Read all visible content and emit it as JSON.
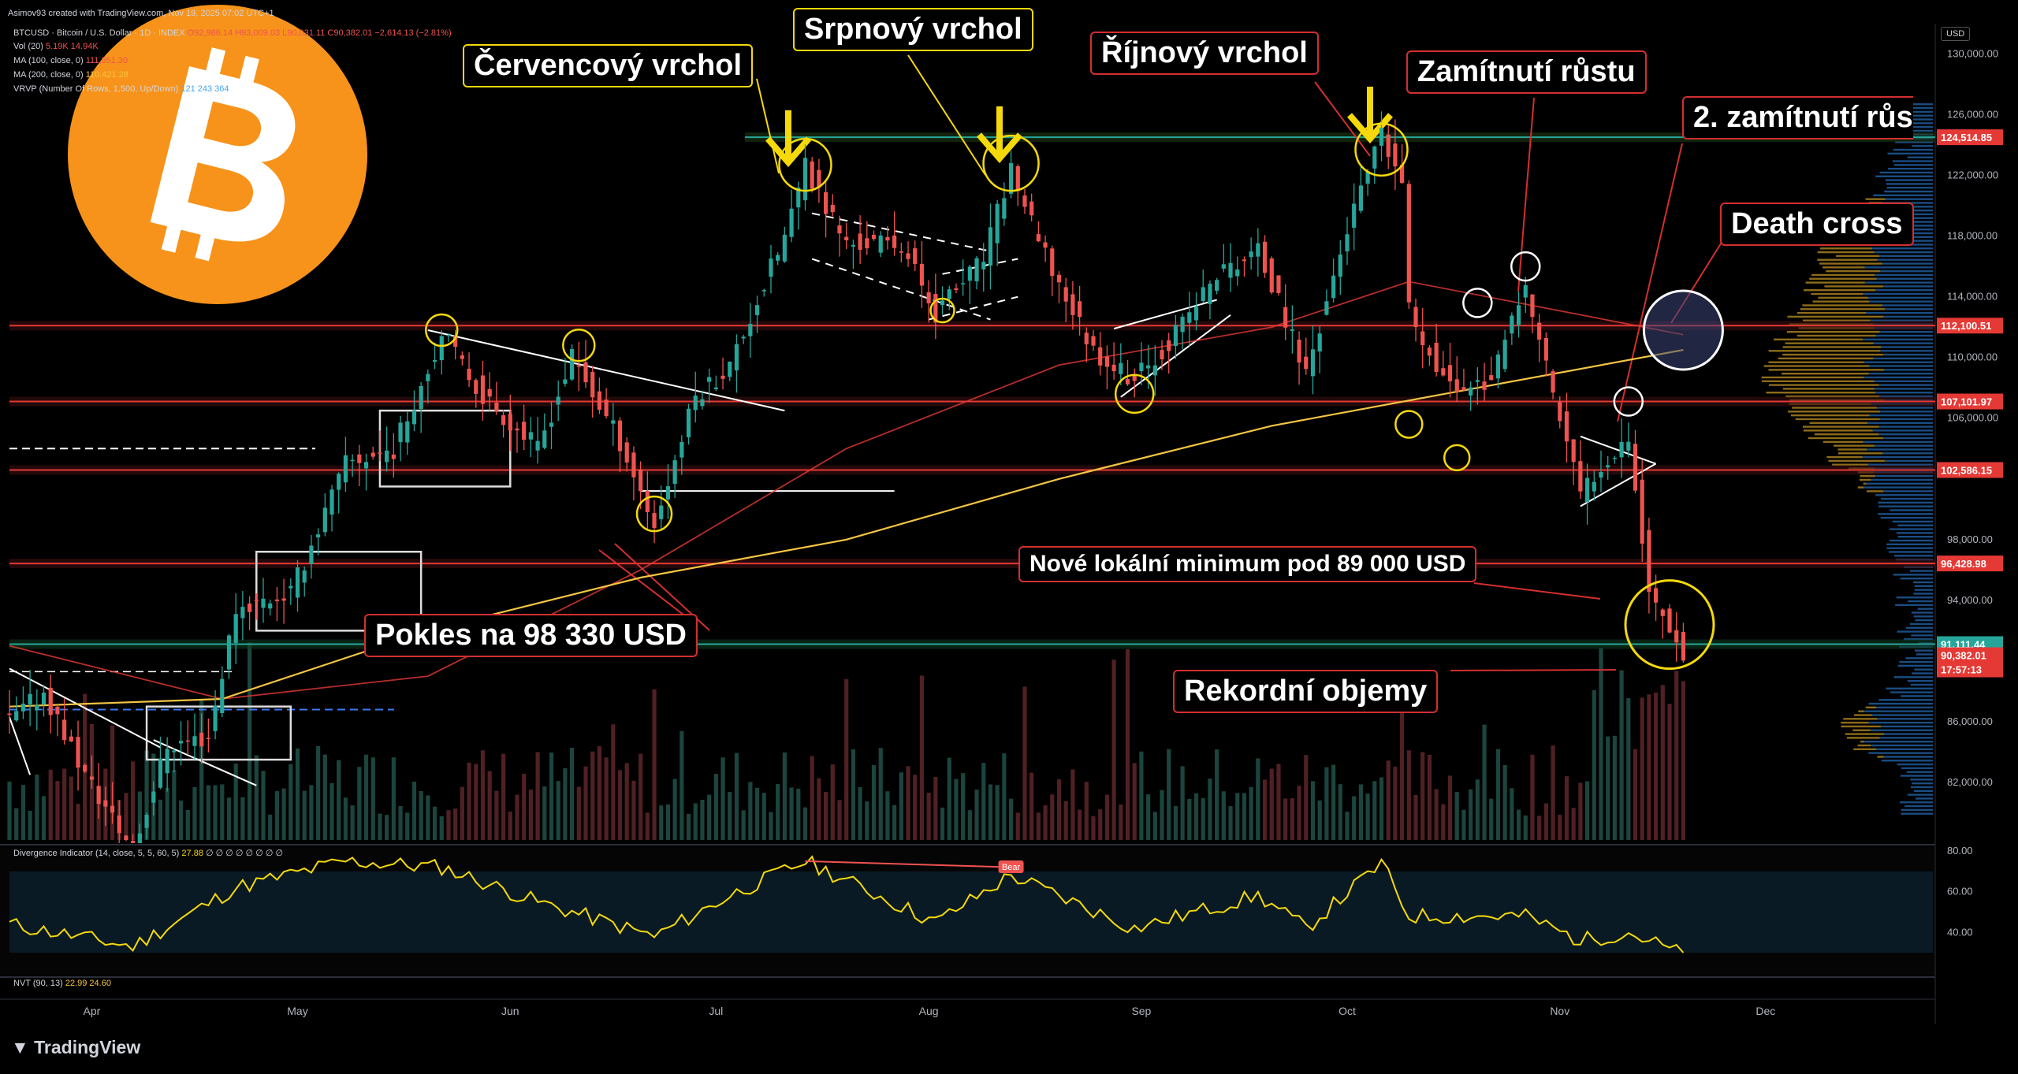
{
  "header": {
    "credit": "Asimov93 created with TradingView.com, Nov 19, 2025 07:02 UTC+1",
    "symbol": "BTCUSD · Bitcoin / U.S. Dollar · 1D · INDEX",
    "ohlc": "O92,986.14  H93,009.03  L90,031.11  C90,382.01  −2,614.13 (−2.81%)",
    "vol": "Vol (20)",
    "vol_vals": "5.19K  14.94K",
    "ma100": "MA (100, close, 0)",
    "ma100_val": "111,351.30",
    "ma200": "MA (200, close, 0)",
    "ma200_val": "110,421.28",
    "vrvp": "VRVP (Number Of Rows, 1,500, Up/Down)",
    "vrvp_vals": "121  243  364",
    "currency": "USD",
    "brand": "TradingView"
  },
  "indicators": {
    "divergence": "Divergence Indicator (14, close, 5, 5, 60, 5)",
    "divergence_val": "27.88",
    "divergence_flags": "∅ ∅ ∅ ∅ ∅ ∅ ∅ ∅",
    "bear_label": "Bear",
    "nvt": "NVT (90, 13)",
    "nvt_vals": "22.99  24.60"
  },
  "annotations": {
    "july_top": "Červencový vrchol",
    "aug_top": "Srpnový vrchol",
    "oct_top": "Říjnový vrchol",
    "rejection": "Zamítnutí růstu",
    "rejection2": "2. zamítnutí růs",
    "death_cross": "Death cross",
    "new_low": "Nové lokální minimum pod 89 000 USD",
    "drop": "Pokles na 98 330 USD",
    "record_vol": "Rekordní objemy"
  },
  "colors": {
    "up": "#26a69a",
    "down": "#ef5350",
    "ma100": "#f5c542",
    "ma200": "#e53935",
    "osc": "#f5d90a",
    "bitcoin": "#f7931a",
    "callout_red": "#d32f2f",
    "callout_yellow": "#f5d90a"
  },
  "chart_data": {
    "type": "candlestick",
    "x_ticks": [
      "Apr",
      "May",
      "Jun",
      "Jul",
      "Aug",
      "Sep",
      "Oct",
      "Nov",
      "Dec"
    ],
    "y_ticks": [
      "130,000.00",
      "126,000.00",
      "122,000.00",
      "118,000.00",
      "114,000.00",
      "110,000.00",
      "106,000.00",
      "98,000.00",
      "94,000.00",
      "86,000.00",
      "82,000.00"
    ],
    "ylim": [
      78000,
      132000
    ],
    "price_tags": [
      {
        "label": "124,514.85",
        "color": "#e53935"
      },
      {
        "label": "112,100.51",
        "color": "#e53935"
      },
      {
        "label": "107,101.97",
        "color": "#e53935"
      },
      {
        "label": "102,586.15",
        "color": "#e53935"
      },
      {
        "label": "96,428.98",
        "color": "#e53935"
      },
      {
        "label": "91,111.44",
        "color": "#26a69a"
      },
      {
        "label": "90,382.01",
        "color": "#e53935"
      },
      {
        "label": "17:57:13",
        "color": "#e53935"
      }
    ],
    "osc_ticks": [
      "80.00",
      "60.00",
      "40.00"
    ],
    "osc_ylim": [
      25,
      80
    ],
    "levels": [
      124514.85,
      112100.51,
      107101.97,
      102586.15,
      96428.98,
      91111.44
    ],
    "price_path": [
      [
        "Mar 20",
        86000
      ],
      [
        "Mar 25",
        88000
      ],
      [
        "Mar 31",
        82500
      ],
      [
        "Apr 7",
        77500
      ],
      [
        "Apr 12",
        84500
      ],
      [
        "Apr 18",
        85000
      ],
      [
        "Apr 22",
        93500
      ],
      [
        "Apr 30",
        94500
      ],
      [
        "May 8",
        103000
      ],
      [
        "May 15",
        104000
      ],
      [
        "May 22",
        111500
      ],
      [
        "May 28",
        107500
      ],
      [
        "Jun 5",
        104000
      ],
      [
        "Jun 10",
        110000
      ],
      [
        "Jun 17",
        104500
      ],
      [
        "Jun 22",
        99000
      ],
      [
        "Jun 28",
        107500
      ],
      [
        "Jul 3",
        109500
      ],
      [
        "Jul 11",
        118000
      ],
      [
        "Jul 14",
        122500
      ],
      [
        "Jul 20",
        117500
      ],
      [
        "Jul 28",
        117500
      ],
      [
        "Aug 2",
        113000
      ],
      [
        "Aug 9",
        116500
      ],
      [
        "Aug 13",
        122500
      ],
      [
        "Aug 17",
        117500
      ],
      [
        "Aug 25",
        110500
      ],
      [
        "Aug 31",
        108500
      ],
      [
        "Sep 5",
        111000
      ],
      [
        "Sep 12",
        115500
      ],
      [
        "Sep 18",
        117000
      ],
      [
        "Sep 25",
        109000
      ],
      [
        "Oct 1",
        118500
      ],
      [
        "Oct 6",
        124500
      ],
      [
        "Oct 9",
        121500
      ],
      [
        "Oct 10",
        113000
      ],
      [
        "Oct 16",
        108000
      ],
      [
        "Oct 22",
        108500
      ],
      [
        "Oct 27",
        114500
      ],
      [
        "Nov 4",
        101000
      ],
      [
        "Nov 7",
        103000
      ],
      [
        "Nov 11",
        105000
      ],
      [
        "Nov 14",
        94500
      ],
      [
        "Nov 17",
        92500
      ],
      [
        "Nov 19",
        90382
      ]
    ],
    "ma100_path": [
      [
        "Mar 20",
        87000
      ],
      [
        "Apr 20",
        87500
      ],
      [
        "May 20",
        92000
      ],
      [
        "Jun 20",
        95500
      ],
      [
        "Jul 20",
        98000
      ],
      [
        "Aug 20",
        102000
      ],
      [
        "Sep 20",
        105500
      ],
      [
        "Oct 20",
        108000
      ],
      [
        "Nov 19",
        110500
      ]
    ],
    "ma200_path": [
      [
        "Mar 20",
        91000
      ],
      [
        "Apr 20",
        87500
      ],
      [
        "May 20",
        89000
      ],
      [
        "Jun 20",
        96000
      ],
      [
        "Jul 20",
        104000
      ],
      [
        "Aug 20",
        109500
      ],
      [
        "Sep 20",
        112000
      ],
      [
        "Oct 10",
        115000
      ],
      [
        "Nov 19",
        111500
      ]
    ],
    "osc_path": [
      [
        "Mar 20",
        44
      ],
      [
        "Apr 7",
        33
      ],
      [
        "Apr 22",
        62
      ],
      [
        "May 8",
        75
      ],
      [
        "May 22",
        72
      ],
      [
        "Jun 5",
        55
      ],
      [
        "Jun 22",
        38
      ],
      [
        "Jul 3",
        58
      ],
      [
        "Jul 14",
        75
      ],
      [
        "Aug 2",
        45
      ],
      [
        "Aug 13",
        68
      ],
      [
        "Aug 31",
        42
      ],
      [
        "Sep 18",
        58
      ],
      [
        "Sep 25",
        42
      ],
      [
        "Oct 6",
        74
      ],
      [
        "Oct 10",
        48
      ],
      [
        "Oct 27",
        48
      ],
      [
        "Nov 4",
        36
      ],
      [
        "Nov 11",
        40
      ],
      [
        "Nov 19",
        29
      ]
    ],
    "bear_divergence": [
      [
        "Jul 14",
        75
      ],
      [
        "Aug 13",
        72
      ]
    ]
  }
}
